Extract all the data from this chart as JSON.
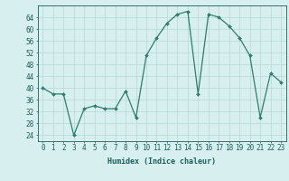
{
  "x": [
    0,
    1,
    2,
    3,
    4,
    5,
    6,
    7,
    8,
    9,
    10,
    11,
    12,
    13,
    14,
    15,
    16,
    17,
    18,
    19,
    20,
    21,
    22,
    23
  ],
  "y": [
    40,
    38,
    38,
    24,
    33,
    34,
    33,
    33,
    39,
    30,
    51,
    57,
    62,
    65,
    66,
    38,
    65,
    64,
    61,
    57,
    51,
    30,
    45,
    42
  ],
  "line_color": "#2e7d6e",
  "marker_color": "#2e7d6e",
  "bg_color": "#d8efef",
  "grid_color": "#b8d8d8",
  "xlabel": "Humidex (Indice chaleur)",
  "yticks": [
    24,
    28,
    32,
    36,
    40,
    44,
    48,
    52,
    56,
    60,
    64
  ],
  "ylim": [
    22,
    68
  ],
  "xlim": [
    -0.5,
    23.5
  ],
  "tick_color": "#1a5f5a",
  "xlabel_fontsize": 6.0,
  "tick_fontsize": 5.5
}
